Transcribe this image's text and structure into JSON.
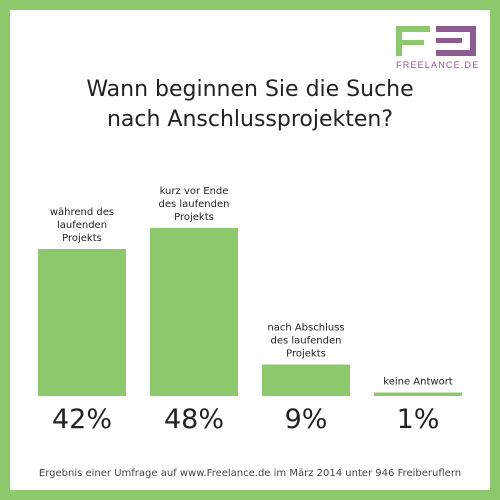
{
  "brand": {
    "name": "FREELANCE.DE",
    "logo_icon": "freelance-logo-icon",
    "colors": {
      "background": "#8cc86c",
      "bar": "#8cc86c",
      "logo_green": "#8cc86c",
      "logo_purple": "#8c5b90",
      "text": "#222222"
    }
  },
  "chart_data": {
    "type": "bar",
    "title_lines": [
      "Wann beginnen Sie die Suche",
      "nach Anschlussprojekten?"
    ],
    "categories": [
      [
        "während des",
        "laufenden",
        "Projekts"
      ],
      [
        "kurz vor Ende",
        "des laufenden",
        "Projekts"
      ],
      [
        "nach Abschluss",
        "des laufenden",
        "Projekts"
      ],
      [
        "keine Antwort"
      ]
    ],
    "values": [
      42,
      48,
      9,
      1
    ],
    "value_labels": [
      "42%",
      "48%",
      "9%",
      "1%"
    ],
    "unit": "%",
    "ylim": [
      0,
      48
    ],
    "grid": false,
    "legend": "none"
  },
  "footnote": "Ergebnis einer Umfrage auf www.Freelance.de im März 2014 unter 946 Freiberuflern"
}
